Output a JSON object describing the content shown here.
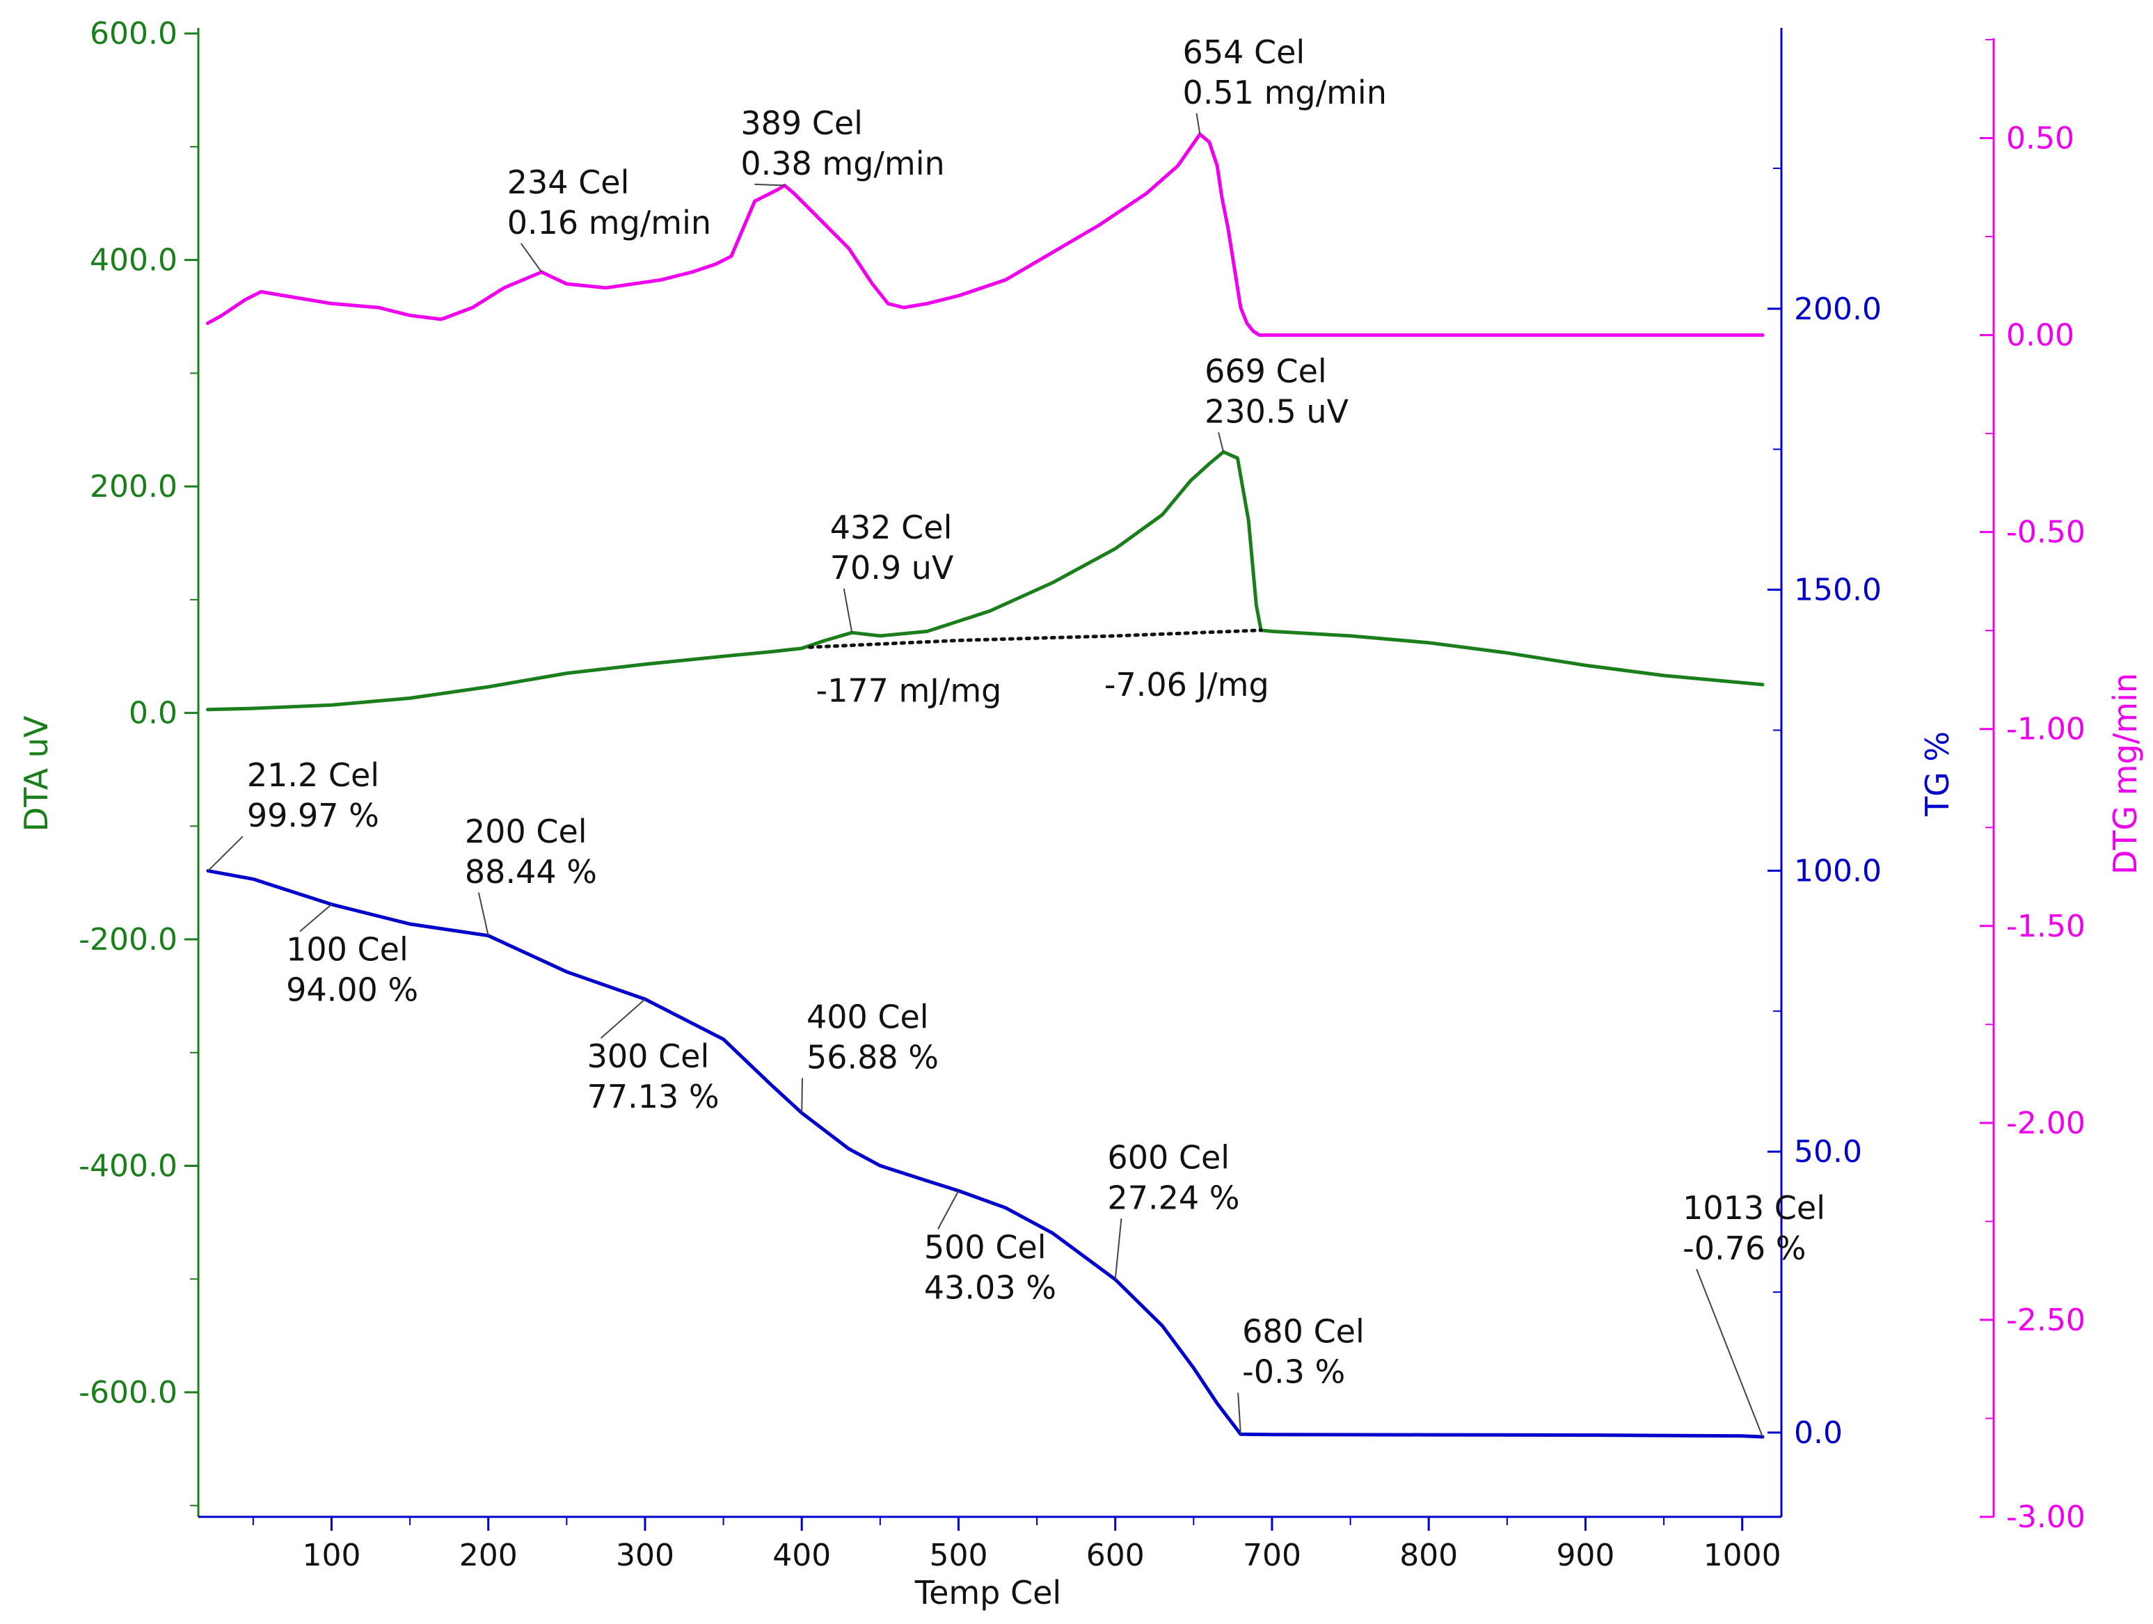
{
  "chart_data": {
    "type": "line",
    "title": "",
    "xlabel": "Temp  Cel",
    "xlim": [
      15,
      1025
    ],
    "x_ticks": [
      100,
      200,
      300,
      400,
      500,
      600,
      700,
      800,
      900,
      1000
    ],
    "x_tick_labels": [
      "100",
      "200",
      "300",
      "400",
      "500",
      "600",
      "700",
      "800",
      "900",
      "1000"
    ],
    "axes": {
      "dta": {
        "label": "DTA  uV",
        "ylim": [
          -710,
          605
        ],
        "ticks": [
          600,
          400,
          200,
          0,
          -200,
          -400,
          -600
        ],
        "tick_labels": [
          "600.0",
          "400.0",
          "200.0",
          "0.0",
          "-200.0",
          "-400.0",
          "-600.0"
        ],
        "color": "#1a7f1a"
      },
      "tg": {
        "label": "TG  %",
        "ylim": [
          -15,
          250
        ],
        "ticks": [
          200,
          150,
          100,
          50,
          0
        ],
        "tick_labels": [
          "200.0",
          "150.0",
          "100.0",
          "50.0",
          "0.0"
        ],
        "color": "#0000cc"
      },
      "dtg": {
        "label": "DTG  mg/min",
        "ylim": [
          -3.0,
          0.78
        ],
        "ticks": [
          0.5,
          0,
          -0.5,
          -1.0,
          -1.5,
          -2.0,
          -2.5,
          -3.0
        ],
        "tick_labels": [
          "0.50",
          "0.00",
          "-0.50",
          "-1.00",
          "-1.50",
          "-2.00",
          "-2.50",
          "-3.00"
        ],
        "color": "#ee00ee"
      }
    },
    "series": [
      {
        "name": "DTG",
        "axis": "dtg",
        "color": "#ee00ee",
        "x": [
          21,
          30,
          45,
          55,
          70,
          100,
          130,
          150,
          170,
          190,
          210,
          234,
          250,
          275,
          310,
          330,
          345,
          355,
          370,
          385,
          389,
          395,
          410,
          430,
          445,
          455,
          465,
          480,
          500,
          530,
          560,
          590,
          620,
          640,
          654,
          660,
          665,
          668,
          672,
          676,
          680,
          684,
          688,
          692,
          700,
          730,
          800,
          900,
          1013
        ],
        "y": [
          0.03,
          0.05,
          0.09,
          0.11,
          0.1,
          0.08,
          0.07,
          0.05,
          0.04,
          0.07,
          0.12,
          0.16,
          0.13,
          0.12,
          0.14,
          0.16,
          0.18,
          0.2,
          0.34,
          0.37,
          0.38,
          0.36,
          0.3,
          0.22,
          0.13,
          0.08,
          0.07,
          0.08,
          0.1,
          0.14,
          0.21,
          0.28,
          0.36,
          0.43,
          0.51,
          0.49,
          0.43,
          0.35,
          0.27,
          0.17,
          0.07,
          0.03,
          0.01,
          0.0,
          0.0,
          0.0,
          0.0,
          0.0,
          0.0
        ]
      },
      {
        "name": "DTA",
        "axis": "dta",
        "color": "#1a7f1a",
        "x": [
          21,
          50,
          100,
          150,
          200,
          250,
          300,
          350,
          380,
          400,
          415,
          432,
          450,
          480,
          520,
          560,
          600,
          630,
          648,
          660,
          669,
          678,
          685,
          690,
          693,
          700,
          750,
          800,
          850,
          900,
          950,
          1013
        ],
        "y": [
          3,
          4,
          7,
          13,
          23,
          35,
          43,
          50,
          54,
          57,
          64,
          70.9,
          68,
          72,
          90,
          115,
          145,
          175,
          205,
          220,
          230.5,
          225,
          170,
          95,
          73,
          72,
          68,
          62,
          53,
          42,
          33,
          25
        ]
      },
      {
        "name": "DTA baseline",
        "axis": "dta",
        "color": "#111111",
        "dashed": true,
        "x": [
          405,
          500,
          600,
          693
        ],
        "y": [
          58,
          64,
          68,
          73
        ]
      },
      {
        "name": "TG",
        "axis": "tg",
        "color": "#0000cc",
        "x": [
          21.2,
          50,
          100,
          150,
          200,
          250,
          300,
          350,
          380,
          400,
          430,
          450,
          480,
          500,
          530,
          560,
          600,
          630,
          650,
          665,
          680,
          700,
          800,
          900,
          1000,
          1013
        ],
        "y": [
          99.97,
          98.5,
          94.0,
          90.5,
          88.44,
          82.0,
          77.13,
          70.0,
          62.0,
          56.88,
          50.5,
          47.5,
          44.8,
          43.03,
          40.0,
          35.5,
          27.24,
          19.0,
          11.5,
          5.2,
          -0.3,
          -0.35,
          -0.4,
          -0.45,
          -0.6,
          -0.76
        ]
      }
    ],
    "annotations": [
      {
        "axis": "dtg",
        "x": 234,
        "y": 0.16,
        "lines": [
          "234 Cel",
          "0.16 mg/min"
        ],
        "text_x": 212,
        "text_y": 0.36
      },
      {
        "axis": "dtg",
        "x": 389,
        "y": 0.38,
        "lines": [
          "389 Cel",
          "0.38 mg/min"
        ],
        "text_x": 361,
        "text_y": 0.51
      },
      {
        "axis": "dtg",
        "x": 654,
        "y": 0.51,
        "lines": [
          "654 Cel",
          "0.51 mg/min"
        ],
        "text_x": 643,
        "text_y": 0.69
      },
      {
        "axis": "dta",
        "x": 669,
        "y": 230.5,
        "lines": [
          "669 Cel",
          "230.5 uV"
        ],
        "text_x": 657,
        "text_y": 292
      },
      {
        "axis": "dta",
        "x": 432,
        "y": 70.9,
        "lines": [
          "432 Cel",
          "70.9 uV"
        ],
        "text_x": 418,
        "text_y": 154
      },
      {
        "axis": "dta",
        "lines": [
          "-177 mJ/mg"
        ],
        "text_x": 409,
        "text_y": 10
      },
      {
        "axis": "dta",
        "lines": [
          "-7.06 J/mg"
        ],
        "text_x": 593,
        "text_y": 15
      },
      {
        "axis": "tg",
        "x": 21.2,
        "y": 99.97,
        "lines": [
          "21.2 Cel",
          "99.97 %"
        ],
        "text_x": 46,
        "text_y": 115
      },
      {
        "axis": "tg",
        "x": 100,
        "y": 94.0,
        "lines": [
          "100 Cel",
          "94.00 %"
        ],
        "text_x": 71,
        "text_y": 84
      },
      {
        "axis": "tg",
        "x": 200,
        "y": 88.44,
        "lines": [
          "200 Cel",
          "88.44 %"
        ],
        "text_x": 185,
        "text_y": 105
      },
      {
        "axis": "tg",
        "x": 300,
        "y": 77.13,
        "lines": [
          "300 Cel",
          "77.13 %"
        ],
        "text_x": 263,
        "text_y": 65
      },
      {
        "axis": "tg",
        "x": 400,
        "y": 56.88,
        "lines": [
          "400 Cel",
          "56.88 %"
        ],
        "text_x": 403,
        "text_y": 72
      },
      {
        "axis": "tg",
        "x": 500,
        "y": 43.03,
        "lines": [
          "500 Cel",
          "43.03 %"
        ],
        "text_x": 478,
        "text_y": 31
      },
      {
        "axis": "tg",
        "x": 600,
        "y": 27.24,
        "lines": [
          "600 Cel",
          "27.24 %"
        ],
        "text_x": 595,
        "text_y": 47
      },
      {
        "axis": "tg",
        "x": 680,
        "y": -0.3,
        "lines": [
          "680 Cel",
          "-0.3 %"
        ],
        "text_x": 681,
        "text_y": 16
      },
      {
        "axis": "tg",
        "x": 1013,
        "y": -0.76,
        "lines": [
          "1013 Cel",
          "-0.76 %"
        ],
        "text_x": 962,
        "text_y": 38
      }
    ]
  }
}
